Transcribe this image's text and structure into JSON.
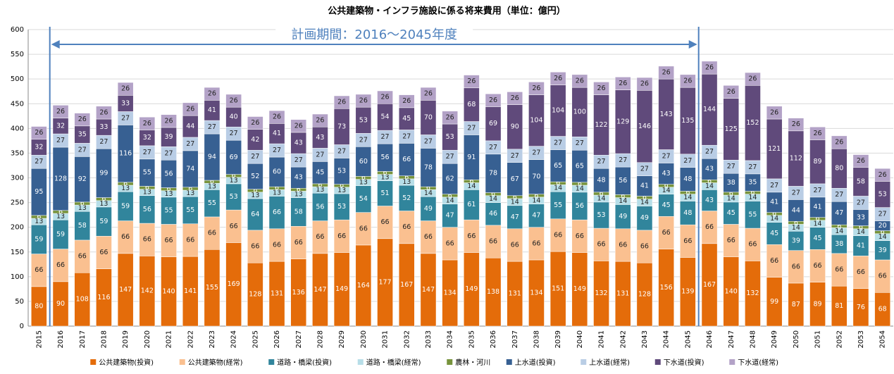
{
  "chart_data": {
    "type": "stacked_bar",
    "title": "公共建築物・インフラ施設に係る将来費用（単位：億円）",
    "annotation": "計画期間：2016～2045年度",
    "categories": [
      "2015",
      "2016",
      "2017",
      "2018",
      "2019",
      "2020",
      "2021",
      "2022",
      "2023",
      "2024",
      "2025",
      "2026",
      "2027",
      "2028",
      "2029",
      "2030",
      "2031",
      "2032",
      "2033",
      "2034",
      "2035",
      "2036",
      "2037",
      "2038",
      "2039",
      "2040",
      "2041",
      "2042",
      "2043",
      "2044",
      "2045",
      "2046",
      "2047",
      "2048",
      "2049",
      "2050",
      "2051",
      "2052",
      "2053",
      "2054"
    ],
    "ylim": [
      0,
      600
    ],
    "yticks": [
      0,
      50,
      100,
      150,
      200,
      250,
      300,
      350,
      400,
      450,
      500,
      550,
      600
    ],
    "grid": true,
    "legend": "bottom",
    "series": [
      {
        "name": "公共建築物(投資)",
        "color": "#e46c0a",
        "values": [
          80,
          90,
          108,
          116,
          147,
          142,
          140,
          141,
          155,
          169,
          128,
          131,
          136,
          147,
          149,
          164,
          177,
          167,
          147,
          134,
          149,
          138,
          131,
          134,
          151,
          149,
          132,
          131,
          128,
          156,
          139,
          167,
          140,
          132,
          99,
          87,
          89,
          81,
          76,
          68
        ]
      },
      {
        "name": "公共建築物(経常)",
        "color": "#fac090",
        "values": [
          66,
          66,
          66,
          66,
          66,
          66,
          66,
          66,
          66,
          66,
          66,
          66,
          66,
          66,
          66,
          66,
          66,
          66,
          66,
          66,
          66,
          66,
          66,
          66,
          66,
          66,
          66,
          66,
          66,
          66,
          66,
          66,
          66,
          66,
          66,
          66,
          66,
          66,
          66,
          66
        ]
      },
      {
        "name": "道路・橋梁(投資)",
        "color": "#31859c",
        "values": [
          59,
          59,
          58,
          59,
          59,
          56,
          55,
          55,
          55,
          53,
          64,
          66,
          58,
          56,
          53,
          54,
          51,
          52,
          49,
          47,
          61,
          46,
          47,
          47,
          55,
          56,
          53,
          49,
          49,
          45,
          48,
          43,
          45,
          55,
          45,
          39,
          45,
          38,
          41,
          39
        ]
      },
      {
        "name": "道路・橋梁(経常)",
        "color": "#b7dee8",
        "values": [
          13,
          13,
          13,
          13,
          13,
          13,
          13,
          13,
          13,
          13,
          13,
          13,
          13,
          13,
          13,
          13,
          13,
          13,
          14,
          14,
          14,
          14,
          14,
          14,
          14,
          14,
          14,
          14,
          14,
          14,
          14,
          14,
          14,
          14,
          14,
          14,
          14,
          14,
          14,
          14
        ]
      },
      {
        "name": "農林・河川",
        "color": "#77933c",
        "values": [
          6,
          6,
          6,
          6,
          6,
          6,
          6,
          6,
          6,
          6,
          6,
          6,
          6,
          6,
          6,
          6,
          6,
          6,
          6,
          6,
          6,
          6,
          6,
          6,
          6,
          6,
          6,
          6,
          6,
          6,
          6,
          6,
          6,
          6,
          6,
          6,
          6,
          6,
          6,
          6
        ]
      },
      {
        "name": "上水道(投資)",
        "color": "#376092",
        "values": [
          95,
          128,
          92,
          99,
          116,
          55,
          56,
          74,
          94,
          69,
          52,
          60,
          43,
          45,
          53,
          60,
          56,
          66,
          78,
          62,
          91,
          78,
          67,
          70,
          65,
          65,
          48,
          56,
          41,
          43,
          48,
          43,
          38,
          35,
          41,
          44,
          41,
          47,
          33,
          20
        ]
      },
      {
        "name": "上水道(経常)",
        "color": "#b9cde5",
        "values": [
          27,
          27,
          27,
          27,
          27,
          27,
          27,
          27,
          27,
          27,
          27,
          27,
          27,
          27,
          27,
          27,
          27,
          27,
          27,
          27,
          27,
          27,
          27,
          27,
          27,
          27,
          27,
          27,
          27,
          27,
          27,
          27,
          27,
          27,
          27,
          27,
          27,
          27,
          27,
          27
        ]
      },
      {
        "name": "下水道(投資)",
        "color": "#604a7b",
        "values": [
          32,
          32,
          35,
          33,
          33,
          32,
          39,
          44,
          41,
          40,
          42,
          41,
          43,
          43,
          73,
          53,
          54,
          45,
          70,
          53,
          68,
          69,
          90,
          104,
          104,
          100,
          122,
          129,
          146,
          143,
          135,
          144,
          125,
          152,
          121,
          112,
          89,
          80,
          58,
          53
        ]
      },
      {
        "name": "下水道(経常)",
        "color": "#b3a2c7",
        "values": [
          26,
          26,
          26,
          26,
          26,
          26,
          26,
          26,
          26,
          26,
          26,
          26,
          26,
          26,
          26,
          26,
          26,
          26,
          26,
          26,
          26,
          26,
          26,
          26,
          26,
          26,
          26,
          26,
          26,
          26,
          26,
          26,
          26,
          26,
          26,
          26,
          26,
          26,
          26,
          26
        ]
      }
    ]
  }
}
